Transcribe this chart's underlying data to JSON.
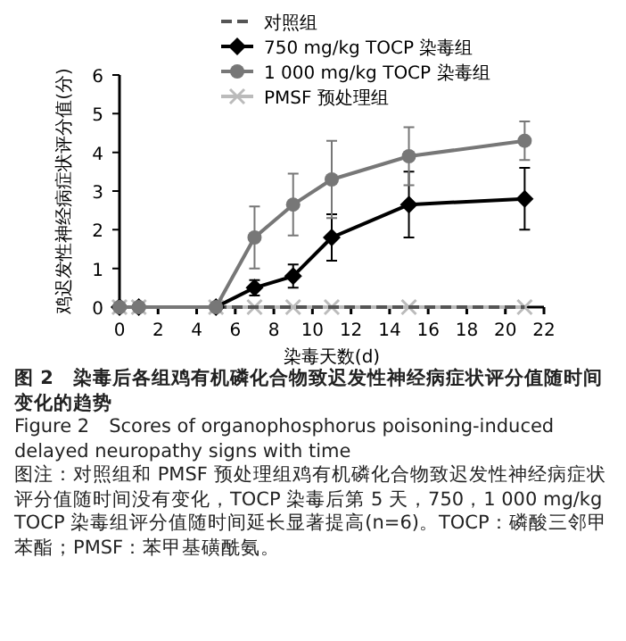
{
  "chart_data": {
    "type": "line",
    "title": "图 2　染毒后各组鸡有机磷化合物致迟发性神经病症状评分值随时间变化的趋势",
    "subtitle": "Figure 2　Scores of organophosphorus poisoning-induced delayed neuropathy signs with time",
    "xlabel": "染毒天数(d)",
    "ylabel": "鸡迟发性神经病症状评分值(分)",
    "annotations": [
      "图注：对照组和 PMSF 预处理组鸡有机磷化合物致迟发性神经病症状评分值随时间没有变化，TOCP 染毒后第 5 天，750，1 000 mg/kg TOCP 染毒组评分值随时间延长显著提高(n=6)。TOCP：磷酸三邻甲苯酯；PMSF：苯甲基磺酰氨。"
    ],
    "x": [
      0,
      1,
      5,
      7,
      9,
      11,
      15,
      21
    ],
    "xlim": [
      0,
      22
    ],
    "xticks": [
      0,
      2,
      4,
      6,
      8,
      10,
      12,
      14,
      16,
      18,
      20,
      22
    ],
    "ylim": [
      0,
      6
    ],
    "yticks": [
      0,
      1,
      2,
      3,
      4,
      5,
      6
    ],
    "grid": false,
    "legend": "top",
    "series": [
      {
        "name": "对照组",
        "color": "#555555",
        "marker": "none",
        "line_style": "dashed",
        "values": [
          0,
          0,
          0,
          0,
          0,
          0,
          0,
          0
        ]
      },
      {
        "name": "750 mg/kg TOCP 染毒组",
        "color": "#000000",
        "marker": "diamond",
        "line_style": "solid",
        "values": [
          0,
          0,
          0,
          0.5,
          0.8,
          1.8,
          2.65,
          2.8
        ],
        "errors": [
          null,
          null,
          null,
          0.2,
          0.3,
          0.6,
          0.85,
          0.8
        ]
      },
      {
        "name": "1 000 mg/kg TOCP 染毒组",
        "color": "#777777",
        "marker": "circle",
        "line_style": "solid",
        "values": [
          0,
          0,
          0,
          1.8,
          2.65,
          3.3,
          3.9,
          4.3
        ],
        "errors": [
          null,
          null,
          null,
          0.8,
          0.8,
          1.0,
          0.75,
          0.5
        ]
      },
      {
        "name": "PMSF 预处理组",
        "color": "#bbbbbb",
        "marker": "cross",
        "line_style": "solid",
        "values": [
          0,
          0,
          0,
          0,
          0,
          0,
          0,
          0
        ]
      }
    ]
  }
}
